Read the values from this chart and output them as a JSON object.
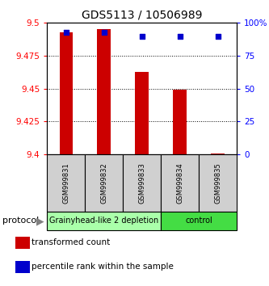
{
  "title": "GDS5113 / 10506989",
  "samples": [
    "GSM999831",
    "GSM999832",
    "GSM999833",
    "GSM999834",
    "GSM999835"
  ],
  "transformed_counts": [
    9.493,
    9.495,
    9.463,
    9.449,
    9.401
  ],
  "percentile_ranks": [
    93,
    93,
    90,
    90,
    90
  ],
  "ylim_left": [
    9.4,
    9.5
  ],
  "ylim_right": [
    0,
    100
  ],
  "yticks_left": [
    9.4,
    9.425,
    9.45,
    9.475,
    9.5
  ],
  "ytick_labels_left": [
    "9.4",
    "9.425",
    "9.45",
    "9.475",
    "9.5"
  ],
  "yticks_right": [
    0,
    25,
    50,
    75,
    100
  ],
  "ytick_labels_right": [
    "0",
    "25",
    "50",
    "75",
    "100%"
  ],
  "bar_color": "#cc0000",
  "dot_color": "#0000cc",
  "groups": [
    {
      "label": "Grainyhead-like 2 depletion",
      "samples": [
        0,
        1,
        2
      ],
      "color": "#aaffaa"
    },
    {
      "label": "control",
      "samples": [
        3,
        4
      ],
      "color": "#44dd44"
    }
  ],
  "protocol_label": "protocol",
  "legend_bar_label": "transformed count",
  "legend_dot_label": "percentile rank within the sample",
  "grid_color": "#000000",
  "background_color": "#ffffff",
  "title_fontsize": 10,
  "tick_fontsize": 7.5,
  "label_fontsize": 7,
  "group_fontsize": 7
}
